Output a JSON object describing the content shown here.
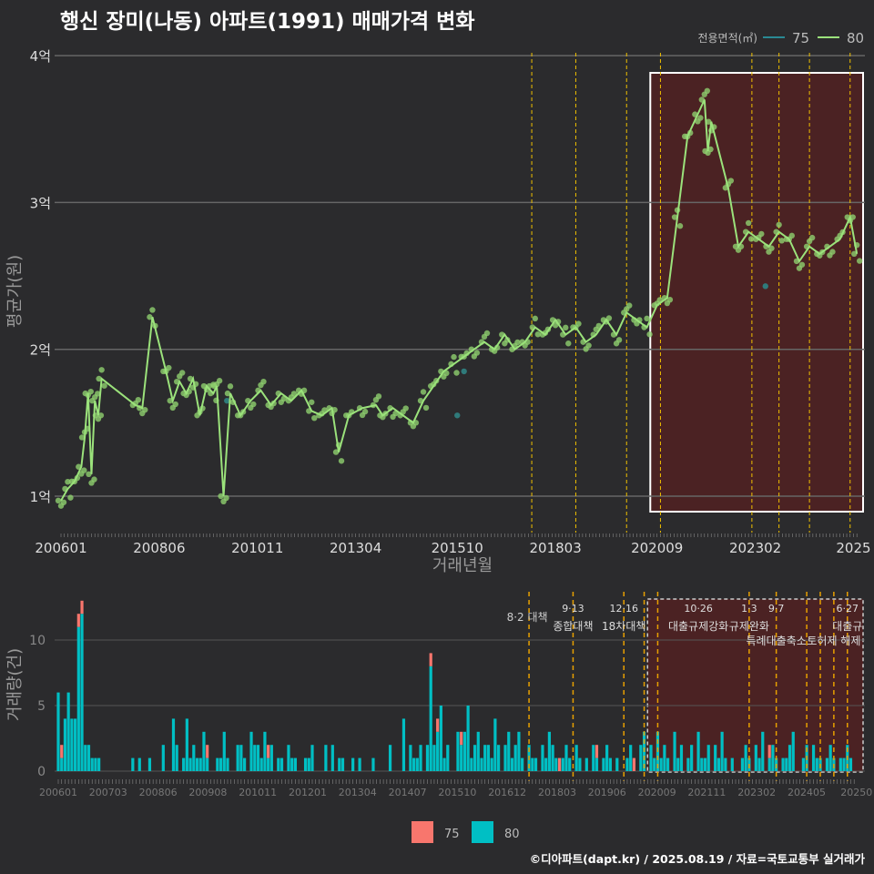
{
  "title": "행신 장미(나동) 아파트(1991) 매매가격 변화",
  "credit": "©디아파트(dapt.kr) / 2025.08.19 / 자료=국토교통부 실거래가",
  "colors": {
    "bg": "#2b2b2d",
    "s75_line": "#2a8a94",
    "s80_line": "#9be27b",
    "point80": "#8fd06e",
    "point75": "#2f7a7a",
    "bar75": "#f8766d",
    "bar80": "#00bfc4",
    "event": "#f0c000",
    "highlight": "#5a2020"
  },
  "chart_data": [
    {
      "type": "line",
      "title": "행신 장미(나동) 아파트(1991) 매매가격 변화",
      "xlabel": "거래년월",
      "ylabel": "평균가(원)",
      "yticks": [
        {
          "v": 1,
          "label": "1억"
        },
        {
          "v": 2,
          "label": "2억"
        },
        {
          "v": 3,
          "label": "3억"
        },
        {
          "v": 4,
          "label": "4억"
        }
      ],
      "xticks": [
        "200601",
        "200806",
        "201011",
        "201304",
        "201510",
        "201803",
        "202009",
        "202302",
        "2025"
      ],
      "legend": {
        "title": "전용면적(㎡)",
        "items": [
          "75",
          "80"
        ],
        "position": "top-right"
      },
      "series": [
        {
          "name": "80",
          "points": [
            [
              200601,
              0.97
            ],
            [
              200603,
              1.05
            ],
            [
              200605,
              1.1
            ],
            [
              200607,
              1.2
            ],
            [
              200608,
              1.4
            ],
            [
              200609,
              1.7
            ],
            [
              200610,
              1.15
            ],
            [
              200611,
              1.65
            ],
            [
              200612,
              1.55
            ],
            [
              200701,
              1.8
            ],
            [
              200711,
              1.62
            ],
            [
              200801,
              1.6
            ],
            [
              200804,
              2.22
            ],
            [
              200808,
              1.85
            ],
            [
              200810,
              1.65
            ],
            [
              200812,
              1.78
            ],
            [
              200902,
              1.7
            ],
            [
              200904,
              1.8
            ],
            [
              200906,
              1.55
            ],
            [
              200908,
              1.75
            ],
            [
              200910,
              1.7
            ],
            [
              200911,
              1.75
            ],
            [
              201001,
              1.0
            ],
            [
              201003,
              1.7
            ],
            [
              201006,
              1.55
            ],
            [
              201009,
              1.65
            ],
            [
              201012,
              1.72
            ],
            [
              201103,
              1.62
            ],
            [
              201106,
              1.7
            ],
            [
              201109,
              1.65
            ],
            [
              201112,
              1.72
            ],
            [
              201203,
              1.58
            ],
            [
              201206,
              1.55
            ],
            [
              201209,
              1.6
            ],
            [
              201211,
              1.3
            ],
            [
              201302,
              1.55
            ],
            [
              201306,
              1.6
            ],
            [
              201310,
              1.62
            ],
            [
              201312,
              1.55
            ],
            [
              201403,
              1.6
            ],
            [
              201406,
              1.55
            ],
            [
              201409,
              1.5
            ],
            [
              201412,
              1.65
            ],
            [
              201503,
              1.75
            ],
            [
              201506,
              1.85
            ],
            [
              201509,
              1.9
            ],
            [
              201512,
              1.95
            ],
            [
              201603,
              2.0
            ],
            [
              201606,
              2.05
            ],
            [
              201609,
              2.0
            ],
            [
              201612,
              2.1
            ],
            [
              201703,
              2.0
            ],
            [
              201706,
              2.05
            ],
            [
              201709,
              2.15
            ],
            [
              201712,
              2.1
            ],
            [
              201803,
              2.2
            ],
            [
              201806,
              2.1
            ],
            [
              201809,
              2.15
            ],
            [
              201812,
              2.05
            ],
            [
              201903,
              2.1
            ],
            [
              201906,
              2.2
            ],
            [
              201909,
              2.1
            ],
            [
              201912,
              2.25
            ],
            [
              202003,
              2.2
            ],
            [
              202006,
              2.15
            ],
            [
              202009,
              2.3
            ],
            [
              202012,
              2.35
            ],
            [
              202103,
              2.9
            ],
            [
              202106,
              3.45
            ],
            [
              202109,
              3.6
            ],
            [
              202111,
              3.7
            ],
            [
              202112,
              3.35
            ],
            [
              202201,
              3.55
            ],
            [
              202206,
              3.1
            ],
            [
              202209,
              2.7
            ],
            [
              202212,
              2.8
            ],
            [
              202303,
              2.75
            ],
            [
              202306,
              2.7
            ],
            [
              202309,
              2.8
            ],
            [
              202312,
              2.75
            ],
            [
              202403,
              2.6
            ],
            [
              202406,
              2.7
            ],
            [
              202409,
              2.65
            ],
            [
              202412,
              2.7
            ],
            [
              202503,
              2.75
            ],
            [
              202506,
              2.9
            ],
            [
              202508,
              2.65
            ]
          ]
        },
        {
          "name": "75",
          "points": [
            [
              201002,
              1.65
            ],
            [
              201510,
              1.55
            ],
            [
              201512,
              1.85
            ],
            [
              202305,
              2.43
            ]
          ]
        }
      ],
      "events": [
        201708,
        201809,
        201912,
        202010,
        202301,
        202309,
        202406,
        202506
      ],
      "highlight": [
        202007,
        202508
      ]
    },
    {
      "type": "bar",
      "ylabel": "거래량(건)",
      "yticks": [
        0,
        5,
        10
      ],
      "xticks": [
        "200601",
        "200703",
        "200806",
        "200908",
        "201011",
        "201201",
        "201304",
        "201407",
        "201510",
        "201612",
        "201803",
        "201906",
        "202009",
        "202111",
        "202302",
        "202405",
        "20250"
      ],
      "legend": {
        "items": [
          "75",
          "80"
        ],
        "position": "bottom"
      },
      "start": 200601,
      "counts80": [
        6,
        1,
        4,
        6,
        4,
        4,
        11,
        12,
        2,
        2,
        1,
        1,
        1,
        0,
        0,
        0,
        0,
        0,
        0,
        0,
        0,
        0,
        1,
        0,
        1,
        0,
        0,
        1,
        0,
        0,
        0,
        2,
        0,
        0,
        4,
        2,
        0,
        1,
        4,
        1,
        2,
        1,
        1,
        3,
        1,
        0,
        0,
        1,
        1,
        3,
        1,
        0,
        0,
        2,
        2,
        1,
        0,
        3,
        2,
        2,
        1,
        3,
        1,
        2,
        0,
        1,
        1,
        0,
        2,
        1,
        1,
        0,
        0,
        1,
        1,
        2,
        0,
        0,
        0,
        2,
        0,
        2,
        0,
        1,
        1,
        0,
        0,
        1,
        0,
        1,
        0,
        0,
        0,
        1,
        0,
        0,
        0,
        0,
        2,
        0,
        0,
        0,
        4,
        0,
        2,
        1,
        1,
        2,
        0,
        2,
        8,
        2,
        3,
        5,
        1,
        2,
        0,
        0,
        3,
        2,
        3,
        5,
        1,
        2,
        3,
        1,
        2,
        2,
        1,
        4,
        2,
        0,
        2,
        3,
        1,
        2,
        3,
        1,
        0,
        2,
        1,
        1,
        0,
        2,
        1,
        3,
        2,
        1,
        0,
        1,
        2,
        1,
        0,
        2,
        1,
        0,
        1,
        0,
        2,
        1,
        0,
        1,
        2,
        1,
        0,
        1,
        0,
        0,
        1,
        2,
        0,
        0,
        2,
        3,
        0,
        2,
        1,
        3,
        1,
        2,
        1,
        0,
        3,
        1,
        2,
        0,
        1,
        2,
        0,
        3,
        1,
        1,
        2,
        0,
        2,
        1,
        3,
        1,
        0,
        1,
        0,
        0,
        1,
        2,
        1,
        0,
        2,
        1,
        3,
        0,
        1,
        2,
        1,
        0,
        1,
        1,
        2,
        3,
        0,
        0,
        1,
        2,
        0,
        2,
        1,
        1,
        0,
        1,
        2,
        1,
        0,
        1,
        1,
        2,
        1
      ],
      "counts75": {
        "1": 1,
        "6": 1,
        "7": 1,
        "44": 1,
        "62": 1,
        "110": 1,
        "112": 1,
        "119": 1,
        "148": 1,
        "159": 1,
        "170": 1,
        "210": 1
      },
      "events": [
        201708,
        201809,
        201912,
        202006,
        202010,
        202301,
        202309,
        202406,
        202410,
        202502,
        202506
      ],
      "event_labels": [
        {
          "date": "8·2 대책",
          "name": "",
          "at": 201708,
          "row": 1
        },
        {
          "date": "9·13",
          "name": "종합대책",
          "at": 201809,
          "row": 0
        },
        {
          "date": "12·16",
          "name": "18차대책",
          "at": 201912,
          "row": 0
        },
        {
          "date": "10·26",
          "name": "대출규제강화",
          "at": 202110,
          "row": 0
        },
        {
          "date": "1·3",
          "name": "규제완화",
          "at": 202301,
          "row": 0
        },
        {
          "date": "9·7",
          "name": "특례대출축소",
          "at": 202309,
          "row": 1
        },
        {
          "date": "",
          "name": "토허제 해제",
          "at": 202502,
          "row": 2
        },
        {
          "date": "6·27",
          "name": "대출규",
          "at": 202506,
          "row": 0
        }
      ],
      "highlight": [
        202007,
        202508
      ]
    }
  ]
}
